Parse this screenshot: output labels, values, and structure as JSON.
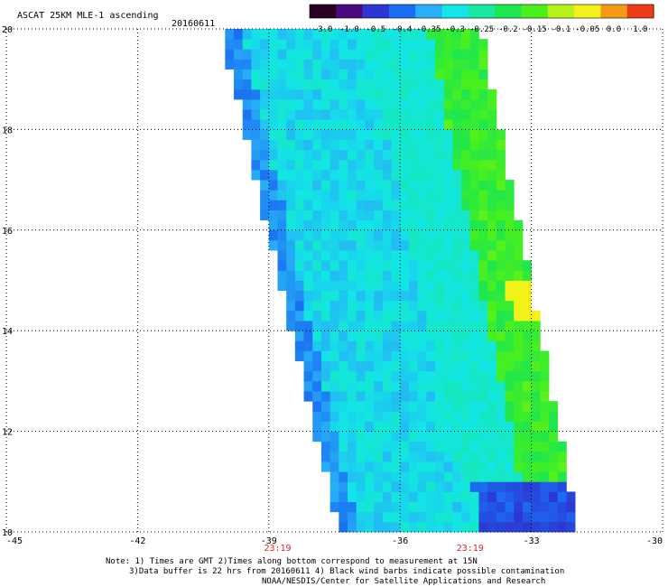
{
  "header": {
    "title": "ASCAT 25KM MLE-1 ascending",
    "date": "20160611"
  },
  "colorbar": {
    "labels": [
      "-3.0",
      "-1.0",
      "-0.5",
      "-0.4",
      "-0.35",
      "-0.3",
      "-0.25",
      "-0.2",
      "-0.15",
      "-0.1",
      "-0.05",
      "0.0",
      "1.0"
    ],
    "colors": [
      "#2a0022",
      "#4b0a7e",
      "#2d36d2",
      "#1a6ef2",
      "#27b0f7",
      "#12e6e6",
      "#19e8a3",
      "#1de650",
      "#4af01c",
      "#b6f11a",
      "#f2f11a",
      "#f59a17",
      "#ee3b17"
    ]
  },
  "notes": {
    "line1": "Note: 1) Times are GMT 2)Times along bottom correspond to measurement at 15N",
    "line2": "3)Data buffer is 22 hrs from 20160611 4) Black wind barbs indicate possible contamination",
    "line3": "NOAA/NESDIS/Center for Satellite Applications and Research"
  },
  "chart_data": {
    "type": "heatmap",
    "title": "ASCAT 25KM MLE-1 ascending",
    "date": "20160611",
    "xlabel": "",
    "ylabel": "",
    "xlim": [
      -45,
      -30
    ],
    "ylim": [
      10,
      20
    ],
    "x_ticks": [
      "-45",
      "-42",
      "-39",
      "-36",
      "-33",
      "-30"
    ],
    "y_ticks": [
      "10",
      "12",
      "14",
      "16",
      "18",
      "20"
    ],
    "grid": true,
    "swath_corners": {
      "top_left": [
        -40.1,
        20
      ],
      "top_right": [
        -34.0,
        19.3
      ],
      "bottom_right": [
        -31.9,
        10
      ],
      "bottom_left": [
        -37.4,
        10
      ]
    },
    "time_labels": [
      {
        "lon": -38.8,
        "text": "23:19"
      },
      {
        "lon": -34.4,
        "text": "23:19"
      }
    ],
    "colorbar_levels": [
      -3.0,
      -1.0,
      -0.5,
      -0.4,
      -0.35,
      -0.3,
      -0.25,
      -0.2,
      -0.15,
      -0.1,
      -0.05,
      0.0,
      1.0
    ],
    "field_description_levels": {
      "west_edge": -0.4,
      "interior": -0.3,
      "east_edge": -0.2,
      "southeast_corner": -0.5,
      "hotspot_near_14.6N": -0.05
    }
  }
}
